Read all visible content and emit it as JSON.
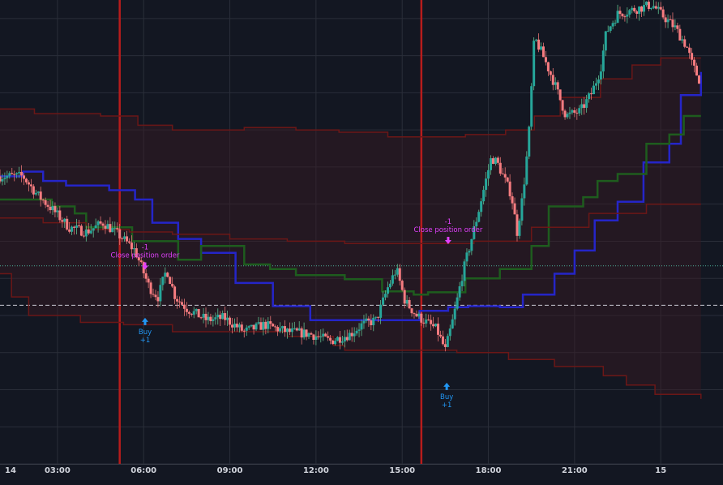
{
  "chart_data": {
    "type": "candlestick",
    "x_tick_labels": [
      "14",
      "03:00",
      "06:00",
      "09:00",
      "12:00",
      "15:00",
      "18:00",
      "21:00",
      "15"
    ],
    "x_range": [
      "14 01:00",
      "15 02:10"
    ],
    "y_range": [
      0,
      100
    ],
    "grid": true,
    "session_markers": [
      "05:10",
      "15:40"
    ],
    "horizontal_lines": [
      {
        "style": "dashed",
        "y": 34.2
      },
      {
        "style": "dotted",
        "y": 42.7
      }
    ],
    "series": [
      {
        "name": "",
        "kind": "stepline",
        "color": "#2525c8",
        "points": [
          [
            0,
            62
          ],
          [
            0.8,
            63
          ],
          [
            1.5,
            61
          ],
          [
            2.3,
            60
          ],
          [
            3.8,
            59
          ],
          [
            4.7,
            57
          ],
          [
            5.3,
            52
          ],
          [
            6.2,
            48.5
          ],
          [
            7.0,
            45.5
          ],
          [
            8.2,
            39
          ],
          [
            9.5,
            34
          ],
          [
            10.8,
            31
          ],
          [
            12.8,
            31
          ],
          [
            14.6,
            33
          ],
          [
            15.6,
            33.8
          ],
          [
            16.3,
            34
          ],
          [
            17.4,
            33.8
          ],
          [
            18.2,
            36.5
          ],
          [
            18.7,
            36.5
          ],
          [
            19.3,
            41
          ],
          [
            20.0,
            46
          ],
          [
            20.7,
            52.5
          ],
          [
            21.5,
            56.5
          ],
          [
            22.4,
            65
          ],
          [
            23.3,
            69
          ],
          [
            23.7,
            79.5
          ],
          [
            24.4,
            84.5
          ]
        ]
      },
      {
        "name": "",
        "kind": "stepline",
        "color": "#1e5c1e",
        "points": [
          [
            0,
            57
          ],
          [
            1.0,
            57
          ],
          [
            1.8,
            55.5
          ],
          [
            2.6,
            54
          ],
          [
            3.0,
            51
          ],
          [
            4.0,
            51
          ],
          [
            4.6,
            48
          ],
          [
            6.2,
            44
          ],
          [
            7.0,
            47
          ],
          [
            8.5,
            43
          ],
          [
            9.4,
            42
          ],
          [
            10.3,
            40.7
          ],
          [
            12.0,
            39.8
          ],
          [
            13.3,
            37.2
          ],
          [
            14.4,
            36.5
          ],
          [
            14.9,
            37
          ],
          [
            16.2,
            40
          ],
          [
            17.4,
            42
          ],
          [
            18.5,
            47
          ],
          [
            19.1,
            55.5
          ],
          [
            20.3,
            57.5
          ],
          [
            20.8,
            61
          ],
          [
            21.5,
            62.5
          ],
          [
            22.5,
            69
          ],
          [
            23.3,
            71
          ],
          [
            23.8,
            75
          ],
          [
            24.4,
            75
          ]
        ]
      },
      {
        "name": "",
        "kind": "stepline",
        "color": "#6b1717",
        "points": [
          [
            0,
            76.5
          ],
          [
            1.2,
            75.5
          ],
          [
            3.5,
            75
          ],
          [
            4.8,
            73
          ],
          [
            6.0,
            72
          ],
          [
            8.5,
            72.5
          ],
          [
            10.3,
            72
          ],
          [
            11.8,
            71.5
          ],
          [
            13.5,
            70.5
          ],
          [
            14.9,
            70.5
          ],
          [
            16.2,
            71
          ],
          [
            17.6,
            72
          ],
          [
            18.6,
            75
          ],
          [
            19.5,
            79
          ],
          [
            20.9,
            83
          ],
          [
            22.0,
            86
          ],
          [
            23.0,
            87.5
          ],
          [
            24.4,
            87.5
          ]
        ]
      },
      {
        "name": "",
        "kind": "stepline",
        "color": "#6b1717",
        "points": [
          [
            0,
            41
          ],
          [
            0.4,
            36
          ],
          [
            1.0,
            32
          ],
          [
            2.8,
            30.5
          ],
          [
            4.3,
            30
          ],
          [
            6.0,
            28.5
          ],
          [
            10.0,
            27.5
          ],
          [
            11.6,
            25.5
          ],
          [
            12.0,
            24.5
          ],
          [
            15.9,
            24
          ],
          [
            17.7,
            22.5
          ],
          [
            19.3,
            21
          ],
          [
            21.0,
            19
          ],
          [
            21.8,
            17
          ],
          [
            22.8,
            15
          ],
          [
            24.4,
            14
          ]
        ]
      },
      {
        "name": "",
        "kind": "stepline",
        "color": "#6b1717",
        "points": [
          [
            0,
            53
          ],
          [
            1.5,
            52
          ],
          [
            3.0,
            50.5
          ],
          [
            4.5,
            50
          ],
          [
            6.0,
            49.5
          ],
          [
            8.0,
            48.5
          ],
          [
            10.0,
            48
          ],
          [
            12.0,
            47.5
          ],
          [
            14.5,
            47.5
          ],
          [
            16.5,
            48
          ],
          [
            18.5,
            51
          ],
          [
            20.5,
            54
          ],
          [
            22.5,
            56
          ],
          [
            24.4,
            56
          ]
        ]
      },
      {
        "name": "",
        "kind": "candles",
        "color": "#f77c80",
        "anchors": [
          [
            0,
            62
          ],
          [
            0.8,
            62
          ],
          [
            1.3,
            58
          ],
          [
            1.8,
            55
          ],
          [
            2.4,
            51
          ],
          [
            3.0,
            50
          ],
          [
            3.6,
            52
          ],
          [
            4.2,
            49
          ],
          [
            4.7,
            46
          ],
          [
            5.2,
            38
          ],
          [
            5.5,
            36
          ],
          [
            5.8,
            42
          ],
          [
            6.1,
            36
          ],
          [
            6.5,
            33.5
          ],
          [
            7.2,
            31
          ],
          [
            7.8,
            31.5
          ],
          [
            8.5,
            28.5
          ],
          [
            9.2,
            30
          ],
          [
            10.0,
            28.5
          ],
          [
            10.8,
            28
          ],
          [
            11.5,
            26.5
          ],
          [
            12.2,
            28
          ],
          [
            12.6,
            30
          ],
          [
            13.1,
            31
          ],
          [
            13.5,
            38
          ],
          [
            13.8,
            42
          ],
          [
            14.1,
            35
          ],
          [
            14.5,
            32
          ],
          [
            15.2,
            29
          ],
          [
            15.5,
            24.5
          ],
          [
            15.8,
            32
          ],
          [
            16.1,
            41
          ],
          [
            16.6,
            53
          ],
          [
            17.1,
            66
          ],
          [
            17.3,
            65
          ],
          [
            17.8,
            58
          ],
          [
            18.0,
            50
          ],
          [
            18.2,
            58
          ],
          [
            18.4,
            70
          ],
          [
            18.6,
            92
          ],
          [
            18.9,
            88
          ],
          [
            19.3,
            82
          ],
          [
            19.7,
            75
          ],
          [
            20.2,
            76
          ],
          [
            20.6,
            80
          ],
          [
            20.9,
            85
          ],
          [
            21.1,
            93
          ],
          [
            21.5,
            97
          ],
          [
            22.1,
            98
          ],
          [
            22.7,
            99
          ],
          [
            23.0,
            97
          ],
          [
            23.5,
            94
          ],
          [
            23.9,
            90
          ],
          [
            24.1,
            86
          ],
          [
            24.4,
            82
          ]
        ]
      }
    ],
    "annotations": [
      {
        "label": "Close position order",
        "qty": "-1",
        "color": "#e040fb",
        "x": 5.05,
        "y": 44.5
      },
      {
        "label": "Buy",
        "qty": "+1",
        "color": "#2196f3",
        "x": 5.05,
        "y": 31.5
      },
      {
        "label": "Close position order",
        "qty": "-1",
        "color": "#e040fb",
        "x": 15.6,
        "y": 50
      },
      {
        "label": "Buy",
        "qty": "+1",
        "color": "#2196f3",
        "x": 15.55,
        "y": 17.5
      }
    ]
  }
}
